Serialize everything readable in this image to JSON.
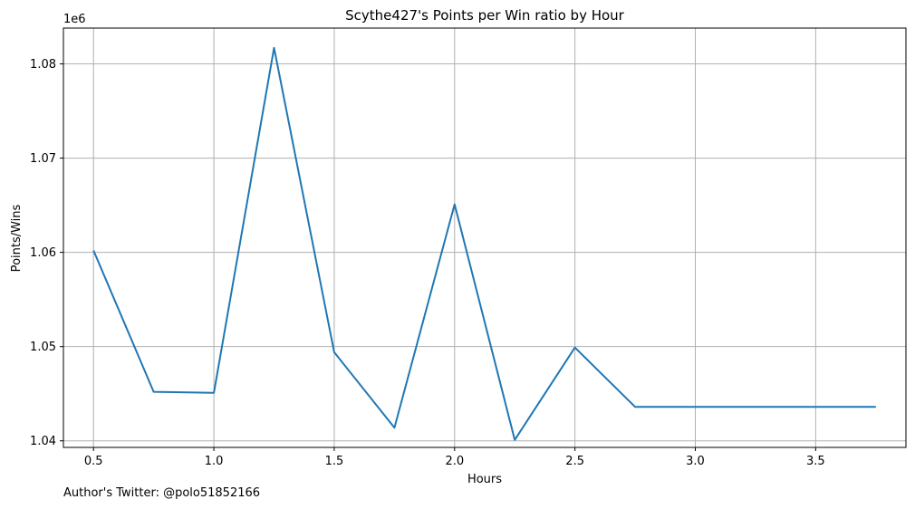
{
  "chart_data": {
    "type": "line",
    "title": "Scythe427's Points per Win ratio by Hour",
    "xlabel": "Hours",
    "ylabel": "Points/Wins",
    "y_offset_label": "1e6",
    "xlim": [
      0.375,
      3.875
    ],
    "ylim": [
      1.0393,
      1.0838
    ],
    "x_ticks": [
      0.5,
      1.0,
      1.5,
      2.0,
      2.5,
      3.0,
      3.5
    ],
    "x_tick_labels": [
      "0.5",
      "1.0",
      "1.5",
      "2.0",
      "2.5",
      "3.0",
      "3.5"
    ],
    "y_ticks": [
      1.04,
      1.05,
      1.06,
      1.07,
      1.08
    ],
    "y_tick_labels": [
      "1.04",
      "1.05",
      "1.06",
      "1.07",
      "1.08"
    ],
    "grid": true,
    "series": [
      {
        "name": "Points/Wins",
        "color": "#1f77b4",
        "x": [
          0.5,
          0.75,
          1.0,
          1.25,
          1.5,
          1.75,
          2.0,
          2.25,
          2.5,
          2.75,
          3.0,
          3.25,
          3.5,
          3.75
        ],
        "values": [
          1.0602,
          1.0452,
          1.0451,
          1.0817,
          1.0494,
          1.0414,
          1.0651,
          1.0401,
          1.0499,
          1.0436,
          1.0436,
          1.0436,
          1.0436,
          1.0436
        ]
      }
    ]
  },
  "footer": {
    "credit": "Author's Twitter: @polo51852166"
  }
}
